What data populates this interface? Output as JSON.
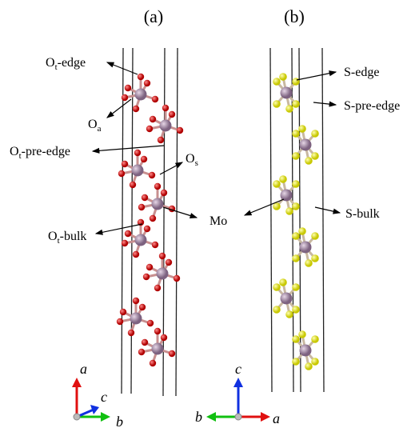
{
  "panels": [
    {
      "label": "(a)",
      "annotations": [
        {
          "base": "O",
          "sub": "t",
          "suffix": "-edge"
        },
        {
          "base": "O",
          "sub": "a",
          "suffix": ""
        },
        {
          "base": "O",
          "sub": "t",
          "suffix": "-pre-edge"
        },
        {
          "base": "O",
          "sub": "s",
          "suffix": ""
        },
        {
          "base": "O",
          "sub": "t",
          "suffix": "-bulk"
        }
      ],
      "axes": [
        "a",
        "c",
        "b"
      ]
    },
    {
      "label": "(b)",
      "annotations": [
        "S-edge",
        "S-pre-edge",
        "S-bulk"
      ],
      "axes": [
        "c",
        "b",
        "a"
      ]
    }
  ],
  "shared_annotation": "Mo"
}
